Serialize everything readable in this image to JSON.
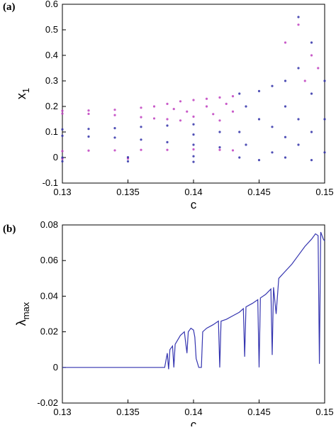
{
  "chart_data": [
    {
      "type": "scatter",
      "panel_label": "(a)",
      "xlabel": "c",
      "ylabel": "x",
      "ylabel_sub": "1",
      "xlim": [
        0.13,
        0.15
      ],
      "xticks": [
        0.13,
        0.135,
        0.14,
        0.145,
        0.15
      ],
      "ylim": [
        -0.1,
        0.6
      ],
      "yticks": [
        -0.1,
        0,
        0.1,
        0.2,
        0.3,
        0.4,
        0.5,
        0.6
      ],
      "series": [
        {
          "color": "#c040c0",
          "x": [
            0.13,
            0.13,
            0.132,
            0.132,
            0.134,
            0.134,
            0.136,
            0.136,
            0.137,
            0.137,
            0.138,
            0.138,
            0.1385,
            0.139,
            0.139,
            0.1395,
            0.14,
            0.14,
            0.141,
            0.141,
            0.1415,
            0.142,
            0.142,
            0.1425,
            0.143,
            0.143,
            0.13,
            0.132,
            0.134,
            0.136,
            0.138,
            0.14,
            0.142,
            0.143,
            0.13,
            0.135,
            0.147,
            0.148,
            0.149,
            0.1485,
            0.1495
          ],
          "values": [
            0.183,
            0.172,
            0.184,
            0.171,
            0.187,
            0.166,
            0.195,
            0.158,
            0.2,
            0.153,
            0.21,
            0.15,
            0.19,
            0.22,
            0.145,
            0.18,
            0.225,
            0.16,
            0.23,
            0.2,
            0.17,
            0.235,
            0.145,
            0.21,
            0.24,
            0.18,
            0.025,
            0.027,
            0.028,
            0.03,
            0.03,
            0.032,
            0.03,
            0.028,
            -0.005,
            -0.004,
            0.45,
            0.52,
            0.4,
            0.3,
            0.35
          ]
        },
        {
          "color": "#3030a8",
          "x": [
            0.13,
            0.13,
            0.132,
            0.132,
            0.134,
            0.134,
            0.136,
            0.136,
            0.138,
            0.138,
            0.14,
            0.14,
            0.14,
            0.142,
            0.142,
            0.13,
            0.13,
            0.135,
            0.135,
            0.14,
            0.14,
            0.1435,
            0.1435,
            0.1435,
            0.144,
            0.144,
            0.145,
            0.145,
            0.145,
            0.146,
            0.146,
            0.146,
            0.147,
            0.147,
            0.147,
            0.147,
            0.148,
            0.148,
            0.148,
            0.148,
            0.149,
            0.149,
            0.149,
            0.149,
            0.15,
            0.15,
            0.15
          ],
          "values": [
            0.11,
            0.085,
            0.112,
            0.082,
            0.115,
            0.078,
            0.12,
            0.07,
            0.125,
            0.06,
            0.13,
            0.05,
            0.09,
            0.1,
            0.04,
            0.0,
            -0.015,
            0.001,
            -0.015,
            0.005,
            -0.017,
            0.25,
            0.1,
            0.0,
            0.2,
            0.05,
            0.26,
            0.15,
            -0.01,
            0.28,
            0.12,
            0.02,
            0.3,
            0.2,
            0.08,
            0.0,
            0.55,
            0.35,
            0.15,
            0.05,
            0.45,
            0.25,
            0.1,
            -0.01,
            0.3,
            0.15,
            0.02
          ]
        }
      ]
    },
    {
      "type": "line",
      "panel_label": "(b)",
      "xlabel": "c",
      "ylabel": "λ",
      "ylabel_sub": "max",
      "xlim": [
        0.13,
        0.15
      ],
      "xticks": [
        0.13,
        0.135,
        0.14,
        0.145,
        0.15
      ],
      "ylim": [
        -0.02,
        0.08
      ],
      "yticks": [
        -0.02,
        0,
        0.02,
        0.04,
        0.06,
        0.08
      ],
      "series": [
        {
          "color": "#3535b0",
          "x": [
            0.13,
            0.1378,
            0.138,
            0.1381,
            0.1382,
            0.1384,
            0.1385,
            0.1386,
            0.139,
            0.1393,
            0.1395,
            0.1396,
            0.1398,
            0.14,
            0.1401,
            0.1402,
            0.1404,
            0.1406,
            0.1407,
            0.141,
            0.1415,
            0.1419,
            0.142,
            0.1421,
            0.1425,
            0.143,
            0.1435,
            0.1438,
            0.1439,
            0.144,
            0.1445,
            0.1449,
            0.145,
            0.1451,
            0.1455,
            0.1459,
            0.146,
            0.1461,
            0.1463,
            0.1465,
            0.147,
            0.1475,
            0.148,
            0.1485,
            0.149,
            0.1493,
            0.1495,
            0.1496,
            0.1497,
            0.1499,
            0.15
          ],
          "values": [
            0,
            0,
            0.008,
            -0.001,
            0.01,
            0.012,
            0,
            0.013,
            0.018,
            0.02,
            0.008,
            0.02,
            0.022,
            0.021,
            0.017,
            0.005,
            0,
            0,
            0.02,
            0.022,
            0.024,
            0.026,
            0,
            0.026,
            0.027,
            0.029,
            0.031,
            0.033,
            0.006,
            0.034,
            0.036,
            0.038,
            0,
            0.039,
            0.041,
            0.044,
            0.007,
            0.045,
            0.03,
            0.05,
            0.054,
            0.058,
            0.063,
            0.068,
            0.072,
            0.075,
            0.074,
            0.002,
            0.076,
            0.072,
            0.071
          ]
        }
      ]
    }
  ]
}
